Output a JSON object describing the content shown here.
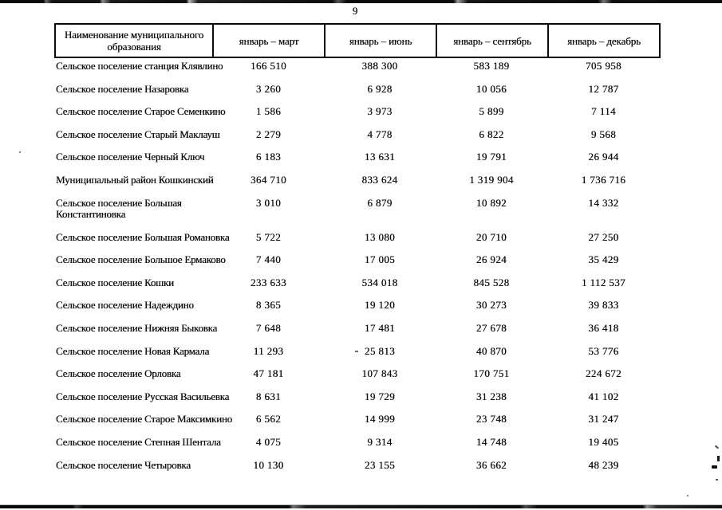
{
  "page": {
    "number": "9"
  },
  "table": {
    "headers": [
      "Наименование муниципального образования",
      "январь – март",
      "январь – июнь",
      "январь – сентябрь",
      "январь – декабрь"
    ],
    "rows": [
      {
        "name": "Сельское поселение станция Клявлино",
        "values": [
          "166 510",
          "388 300",
          "583 189",
          "705 958"
        ]
      },
      {
        "name": "Сельское поселение Назаровка",
        "values": [
          "3 260",
          "6 928",
          "10 056",
          "12 787"
        ]
      },
      {
        "name": "Сельское поселение Старое Семенкино",
        "values": [
          "1 586",
          "3 973",
          "5 899",
          "7 114"
        ]
      },
      {
        "name": "Сельское поселение Старый Маклауш",
        "values": [
          "2 279",
          "4 778",
          "6 822",
          "9 568"
        ]
      },
      {
        "name": "Сельское поселение Черный Ключ",
        "values": [
          "6 183",
          "13 631",
          "19 791",
          "26 944"
        ]
      },
      {
        "name": "Муниципальный район Кошкинский",
        "values": [
          "364 710",
          "833 624",
          "1 319 904",
          "1 736 716"
        ]
      },
      {
        "name": "Сельское поселение Большая\nКонстантиновка",
        "values": [
          "3 010",
          "6 879",
          "10 892",
          "14 332"
        ]
      },
      {
        "name": "Сельское поселение Большая Романовка",
        "values": [
          "5 722",
          "13 080",
          "20 710",
          "27 250"
        ]
      },
      {
        "name": "Сельское поселение Большое Ермаково",
        "values": [
          "7 440",
          "17 005",
          "26 924",
          "35 429"
        ]
      },
      {
        "name": "Сельское поселение Кошки",
        "values": [
          "233 633",
          "534 018",
          "845 528",
          "1 112 537"
        ]
      },
      {
        "name": "Сельское поселение Надеждино",
        "values": [
          "8 365",
          "19 120",
          "30 273",
          "39 833"
        ]
      },
      {
        "name": "Сельское поселение Нижняя Быковка",
        "values": [
          "7 648",
          "17 481",
          "27 678",
          "36 418"
        ]
      },
      {
        "name": "Сельское поселение Новая Кармала",
        "values": [
          "11 293",
          "25 813",
          "40 870",
          "53 776"
        ]
      },
      {
        "name": "Сельское поселение Орловка",
        "values": [
          "47 181",
          "107 843",
          "170 751",
          "224 672"
        ]
      },
      {
        "name": "Сельское поселение Русская Васильевка",
        "values": [
          "8 631",
          "19 729",
          "31 238",
          "41 102"
        ]
      },
      {
        "name": "Сельское поселение Старое Максимкино",
        "values": [
          "6 562",
          "14 999",
          "23 748",
          "31 247"
        ]
      },
      {
        "name": "Сельское поселение Степная Шентала",
        "values": [
          "4 075",
          "9 314",
          "14 748",
          "19 405"
        ]
      },
      {
        "name": "Сельское поселение Четыровка",
        "values": [
          "10 130",
          "23 155",
          "36 662",
          "48 239"
        ]
      }
    ]
  }
}
